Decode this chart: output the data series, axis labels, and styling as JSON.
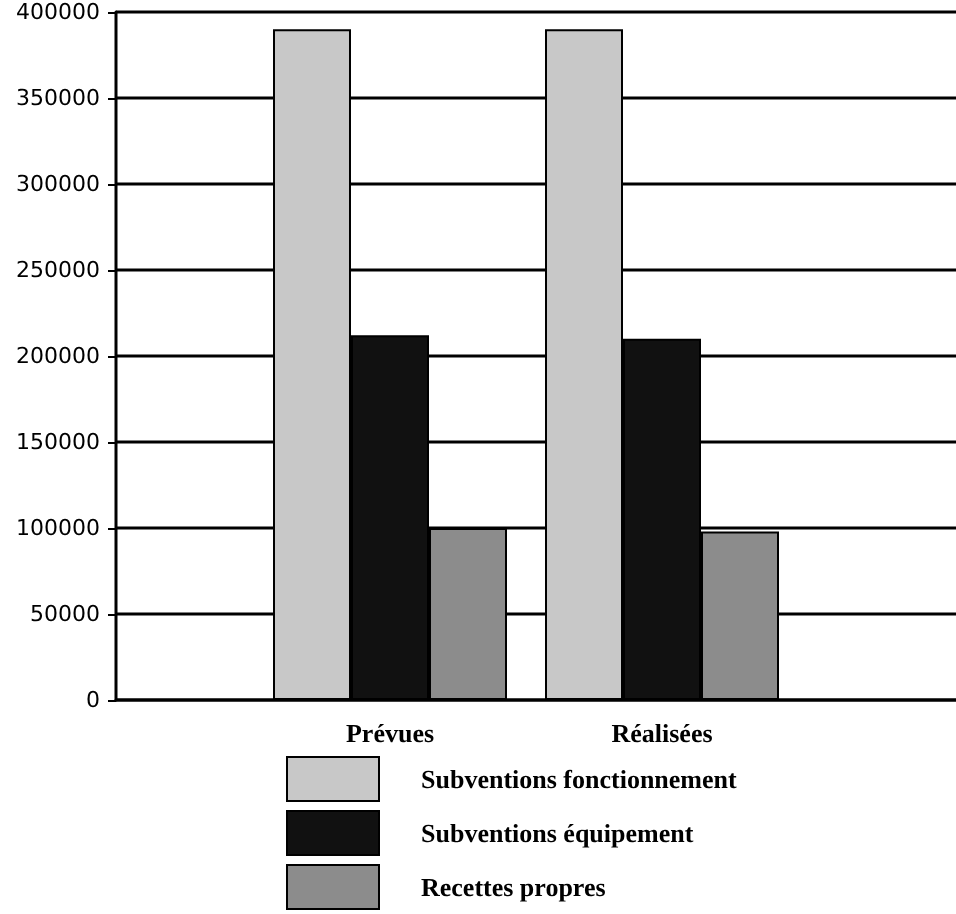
{
  "chart_data": {
    "type": "bar",
    "categories": [
      "Prévues",
      "Réalisées"
    ],
    "series": [
      {
        "name": "Subventions fonctionnement",
        "color": "#c8c8c8",
        "values": [
          390000,
          390000
        ]
      },
      {
        "name": "Subventions équipement",
        "color": "#111111",
        "values": [
          212000,
          210000
        ]
      },
      {
        "name": "Recettes propres",
        "color": "#8c8c8c",
        "values": [
          100000,
          98000
        ]
      }
    ],
    "ylim": [
      0,
      400000
    ],
    "yticks": [
      0,
      50000,
      100000,
      150000,
      200000,
      250000,
      300000,
      350000,
      400000
    ],
    "grid": "y",
    "legend": "bottom"
  }
}
